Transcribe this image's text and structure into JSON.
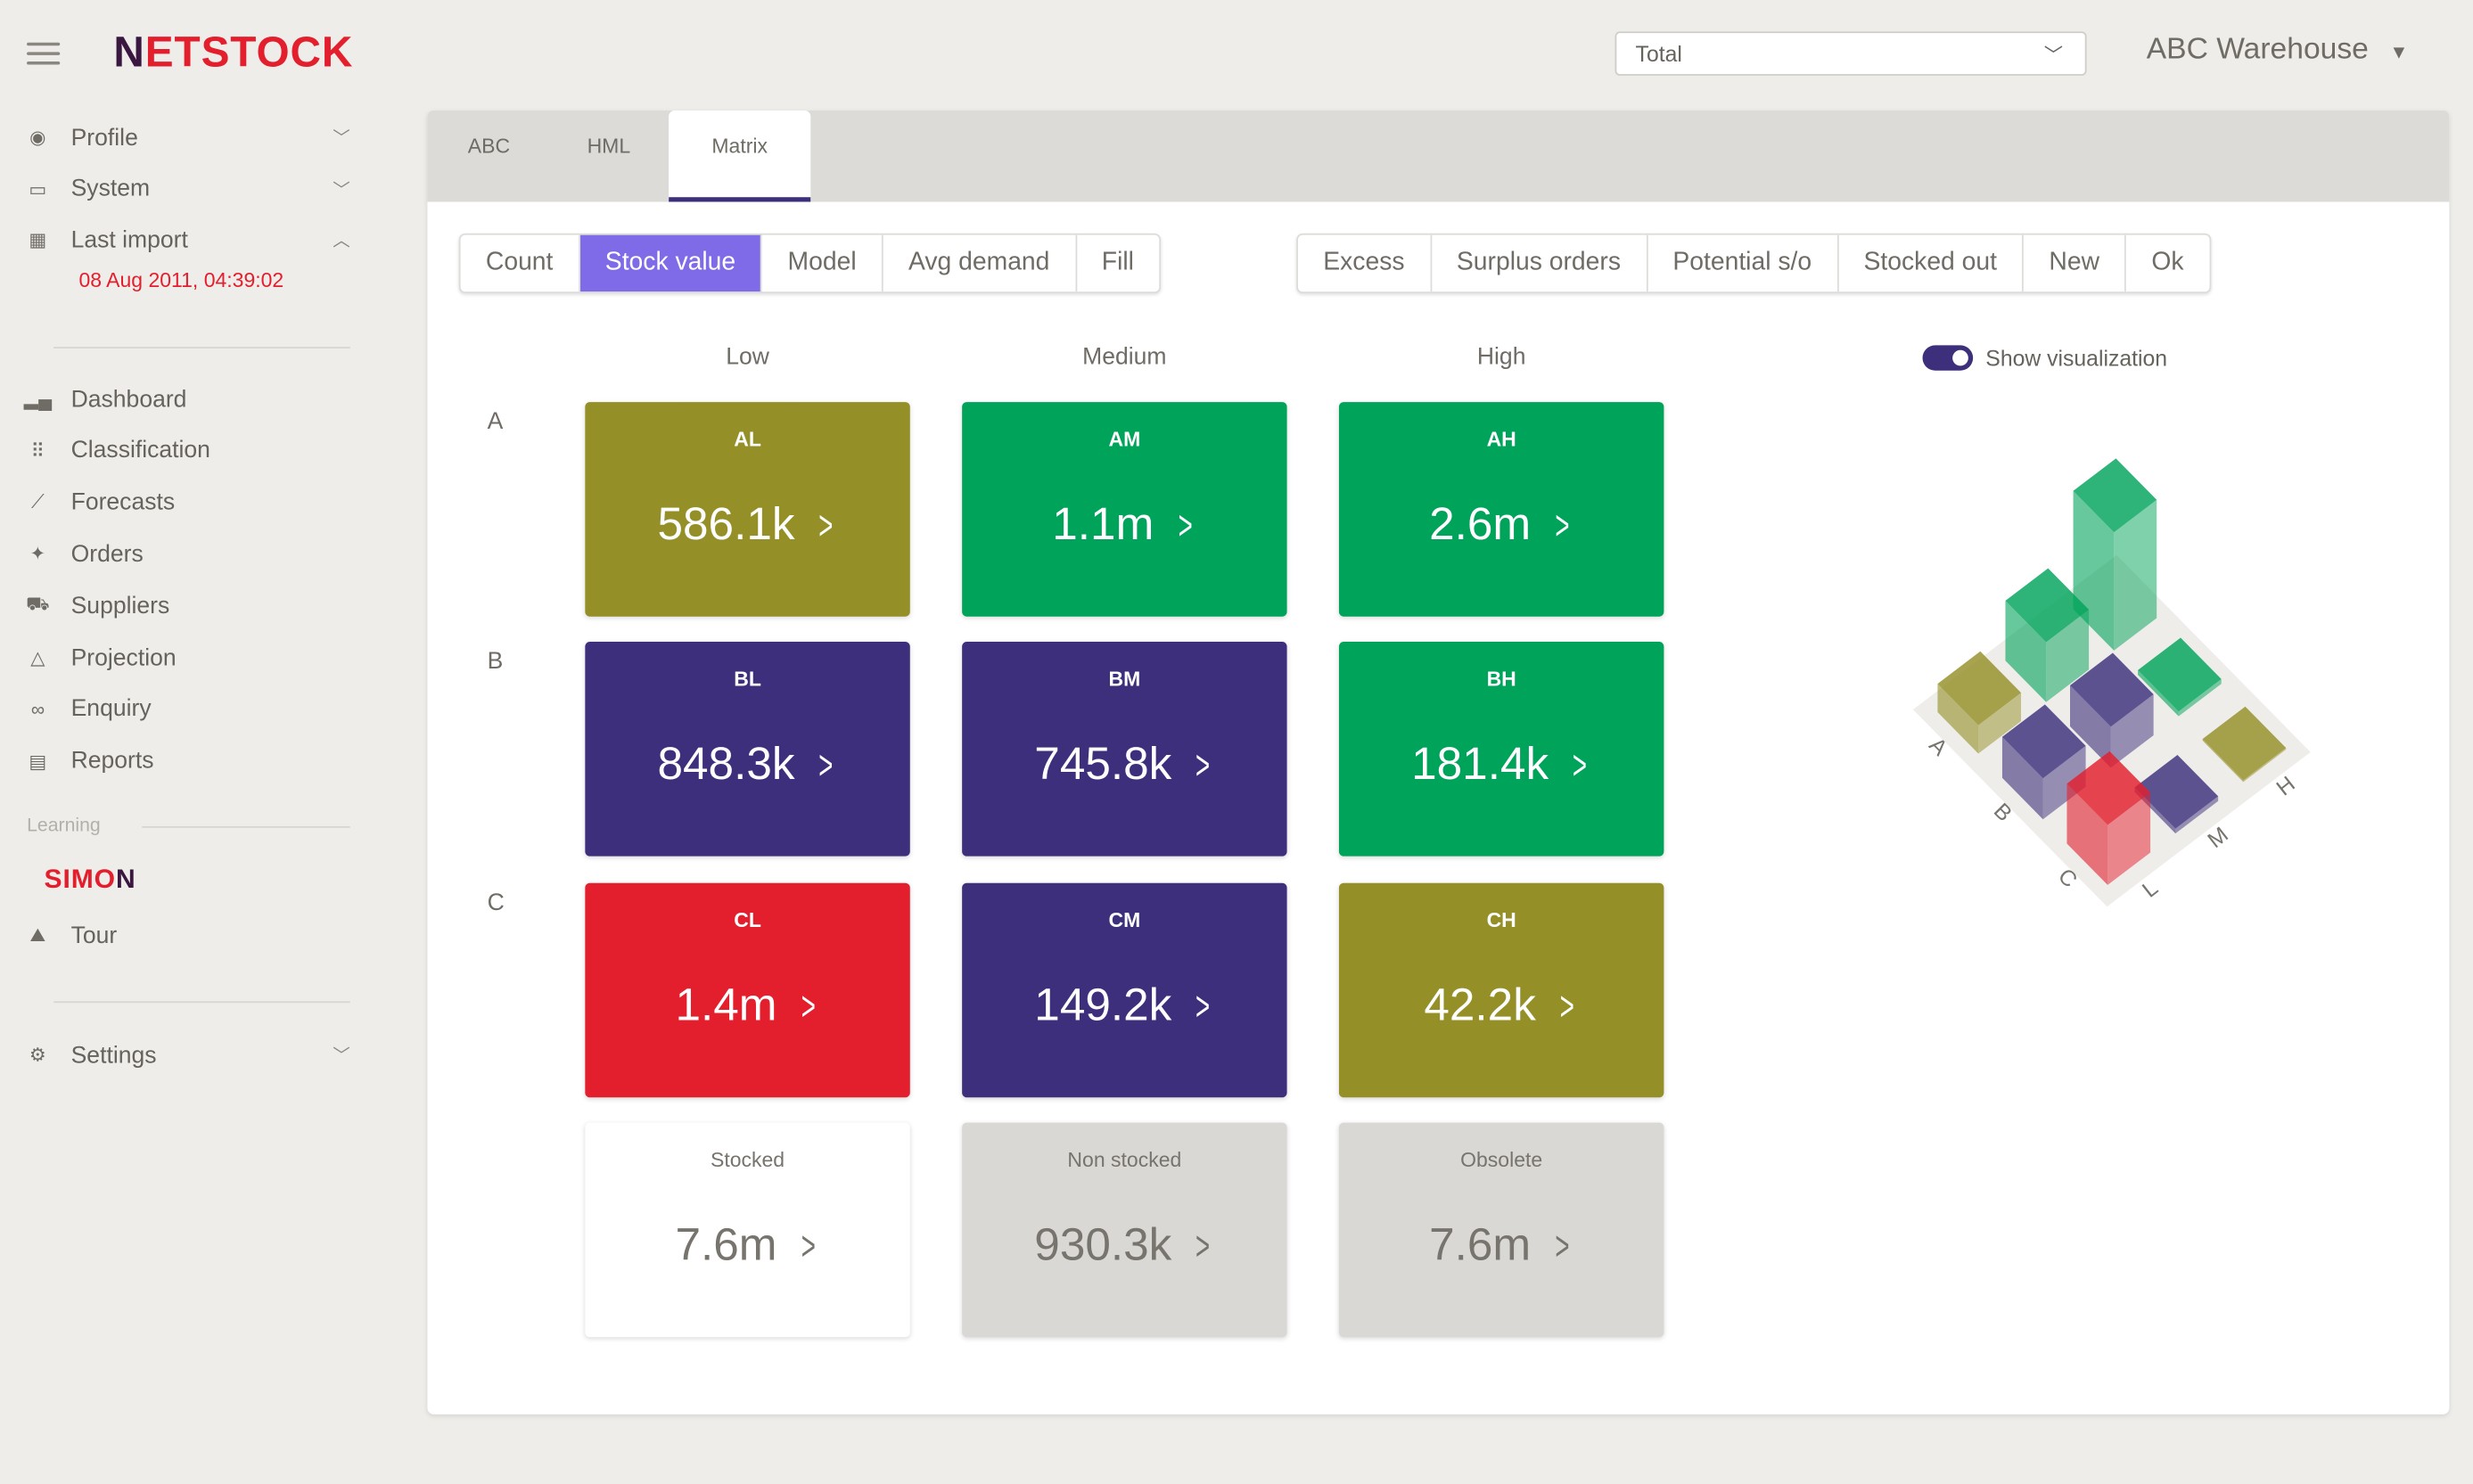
{
  "header": {
    "logo": "NETSTOCK",
    "filter_value": "Total",
    "warehouse": "ABC Warehouse"
  },
  "sidebar": {
    "top_items": [
      {
        "label": "Profile",
        "icon": "user-circle-icon"
      },
      {
        "label": "System",
        "icon": "window-icon"
      },
      {
        "label": "Last import",
        "icon": "calendar-icon"
      }
    ],
    "last_import_date": "08 Aug 2011, 04:39:02",
    "items": [
      {
        "label": "Dashboard",
        "icon": "bar-chart-icon"
      },
      {
        "label": "Classification",
        "icon": "grid-icon"
      },
      {
        "label": "Forecasts",
        "icon": "line-chart-icon"
      },
      {
        "label": "Orders",
        "icon": "sparkle-icon"
      },
      {
        "label": "Suppliers",
        "icon": "truck-icon"
      },
      {
        "label": "Projection",
        "icon": "triangle-icon"
      },
      {
        "label": "Enquiry",
        "icon": "glasses-icon"
      },
      {
        "label": "Reports",
        "icon": "document-icon"
      }
    ],
    "learning_label": "Learning",
    "simon_logo": "SIMON",
    "tour": "Tour",
    "settings": "Settings"
  },
  "tabs": [
    {
      "label": "ABC"
    },
    {
      "label": "HML"
    },
    {
      "label": "Matrix",
      "active": true
    }
  ],
  "metric_buttons": [
    "Count",
    "Stock value",
    "Model",
    "Avg demand",
    "Fill"
  ],
  "selected_metric": "Stock value",
  "filter_buttons": [
    "Excess",
    "Surplus orders",
    "Potential s/o",
    "Stocked out",
    "New",
    "Ok"
  ],
  "matrix": {
    "columns": [
      "Low",
      "Medium",
      "High"
    ],
    "rows": [
      "A",
      "B",
      "C"
    ],
    "cells": [
      [
        {
          "key": "AL",
          "value": "586.1k",
          "color": "#958f27"
        },
        {
          "key": "AM",
          "value": "1.1m",
          "color": "#00a35a"
        },
        {
          "key": "AH",
          "value": "2.6m",
          "color": "#00a35a"
        }
      ],
      [
        {
          "key": "BL",
          "value": "848.3k",
          "color": "#3d2f7c"
        },
        {
          "key": "BM",
          "value": "745.8k",
          "color": "#3d2f7c"
        },
        {
          "key": "BH",
          "value": "181.4k",
          "color": "#00a35a"
        }
      ],
      [
        {
          "key": "CL",
          "value": "1.4m",
          "color": "#e31e2d"
        },
        {
          "key": "CM",
          "value": "149.2k",
          "color": "#3d2f7c"
        },
        {
          "key": "CH",
          "value": "42.2k",
          "color": "#958f27"
        }
      ]
    ],
    "totals": [
      {
        "key": "Stocked",
        "value": "7.6m",
        "color": "#ffffff"
      },
      {
        "key": "Non stocked",
        "value": "930.3k",
        "color": "#d9d8d5"
      },
      {
        "key": "Obsolete",
        "value": "7.6m",
        "color": "#d9d8d5"
      }
    ],
    "arrow": ">"
  },
  "visualization": {
    "toggle_label": "Show visualization",
    "enabled": true,
    "row_labels": [
      "A",
      "B",
      "C"
    ],
    "col_labels": [
      "L",
      "M",
      "H"
    ]
  }
}
